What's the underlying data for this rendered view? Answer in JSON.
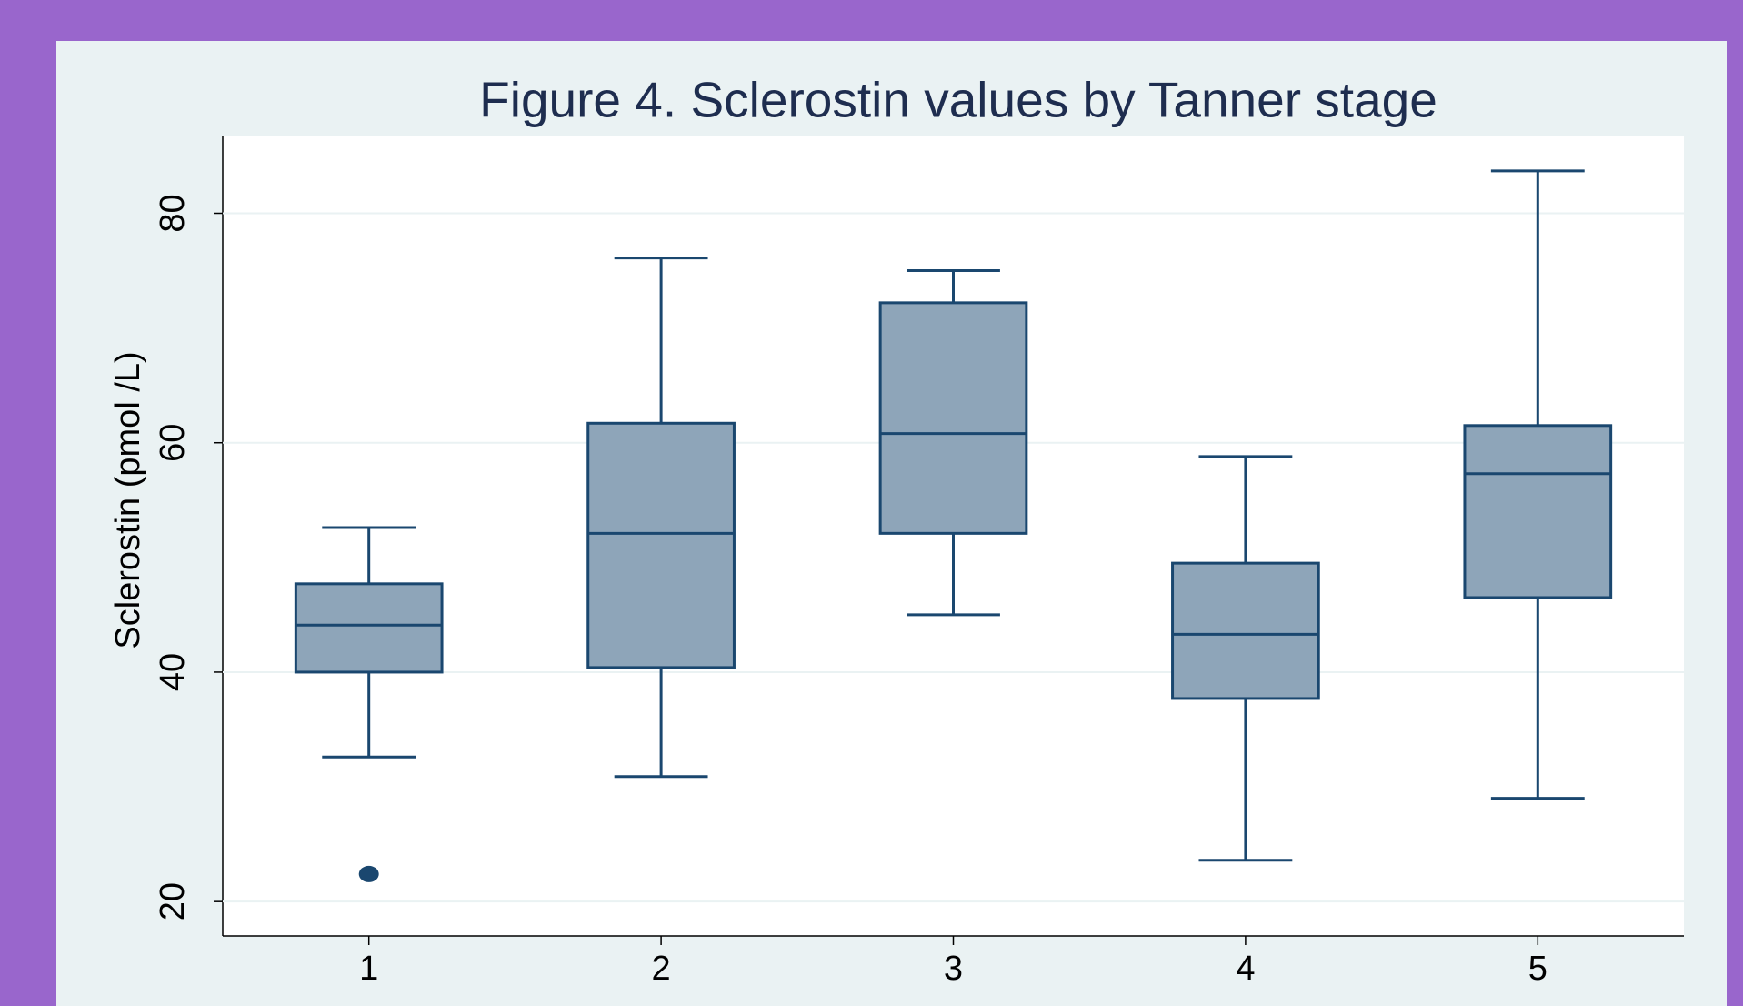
{
  "chart_data": {
    "type": "box",
    "title": "Figure 4. Sclerostin values by Tanner stage",
    "y_label": "Sclerostin (pmol /L)",
    "categories": [
      "1",
      "2",
      "3",
      "4",
      "5"
    ],
    "whisker_low": [
      32.6,
      30.9,
      45.0,
      23.6,
      29.0
    ],
    "q1": [
      40.0,
      40.4,
      52.1,
      37.7,
      46.5
    ],
    "median": [
      44.1,
      52.1,
      60.8,
      43.3,
      57.3
    ],
    "q3": [
      47.7,
      61.7,
      72.2,
      49.5,
      61.5
    ],
    "whisker_high": [
      52.6,
      76.1,
      75.0,
      58.8,
      83.7
    ],
    "outliers": [
      [
        22.4
      ],
      [],
      [],
      [],
      []
    ],
    "color": "#8ea5b9",
    "edge_color": "#1a476f",
    "ylim": [
      17,
      86.7
    ],
    "yticks": [
      20,
      40,
      60,
      80
    ],
    "grid": true
  }
}
